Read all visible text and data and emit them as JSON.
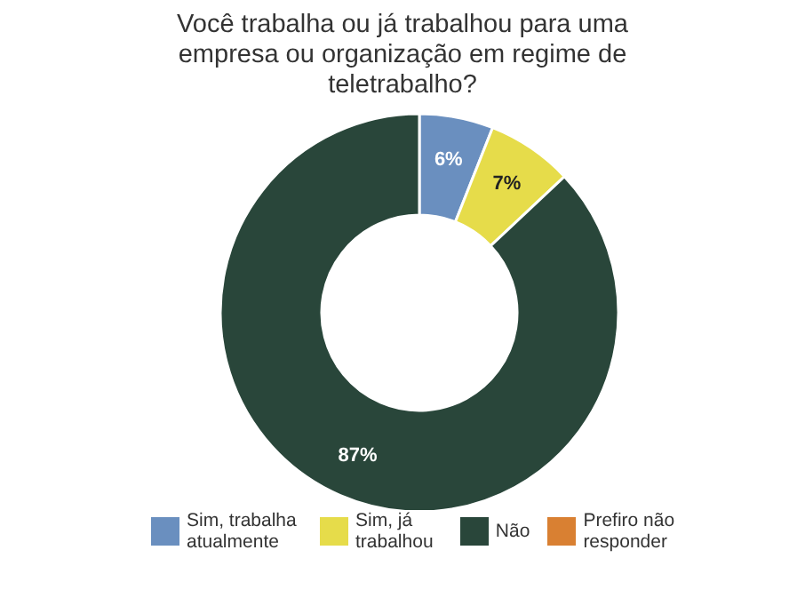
{
  "chart_data": {
    "type": "donut",
    "title": "Você trabalha ou já trabalhou para uma empresa ou organização em regime de teletrabalho?",
    "categories": [
      "Sim, trabalha atualmente",
      "Sim, já trabalhou",
      "Não",
      "Prefiro não responder"
    ],
    "values": [
      6,
      7,
      87,
      0
    ],
    "colors": [
      "#6a8fbf",
      "#e6dc4a",
      "#29463a",
      "#d98032"
    ],
    "value_labels": [
      "6%",
      "7%",
      "87%",
      null
    ],
    "legend": "bottom"
  }
}
